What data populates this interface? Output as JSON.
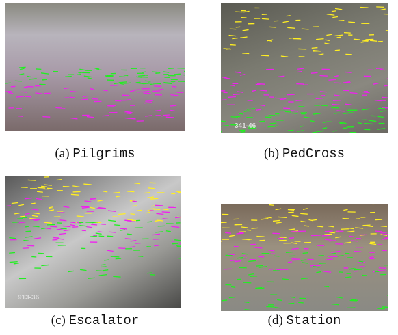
{
  "figure": {
    "panels": [
      {
        "label": "(a)",
        "name": "Pilgrims"
      },
      {
        "label": "(b)",
        "name": "PedCross",
        "overlay": "341-46"
      },
      {
        "label": "(c)",
        "name": "Escalator",
        "overlay": "913-36"
      },
      {
        "label": "(d)",
        "name": "Station"
      }
    ]
  }
}
